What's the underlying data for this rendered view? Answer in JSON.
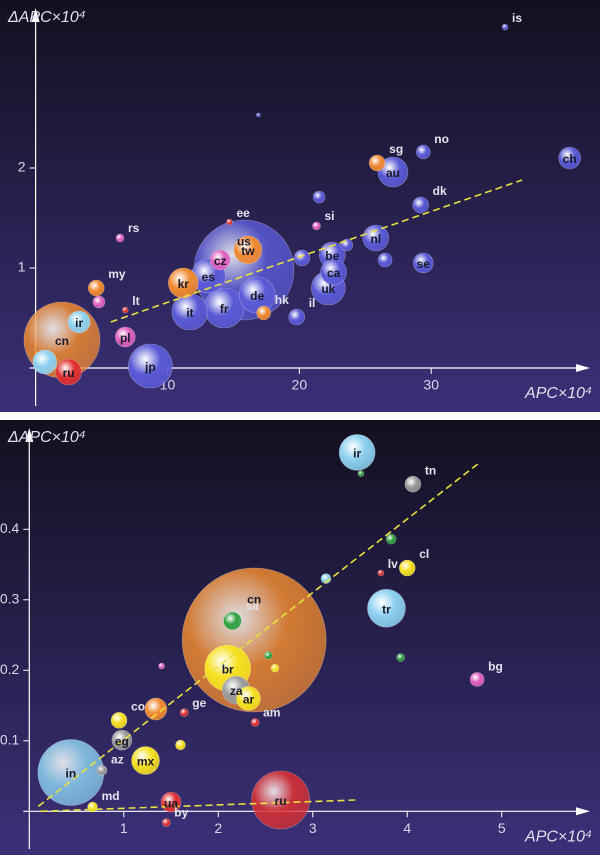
{
  "chart_data": [
    {
      "type": "bubble",
      "y_label": "ΔAPC×10⁴",
      "x_label": "APC×10⁴",
      "xlim": [
        -2.7,
        42.8
      ],
      "ylim": [
        -0.44,
        3.68
      ],
      "xticks": [
        10,
        20,
        30
      ],
      "yticks": [
        1,
        2
      ],
      "points": [
        {
          "label": "us",
          "x": 15.8,
          "y": 0.98,
          "size": 50,
          "color": "#5a5ad6"
        },
        {
          "label": "cn",
          "x": 2.0,
          "y": 0.28,
          "size": 38,
          "color": "#f08a30"
        },
        {
          "label": "jp",
          "x": 8.7,
          "y": 0.02,
          "size": 22,
          "color": "#5a5ad6"
        },
        {
          "label": "fr",
          "x": 14.3,
          "y": 0.6,
          "size": 20,
          "color": "#5a5ad6"
        },
        {
          "label": "de",
          "x": 16.8,
          "y": 0.73,
          "size": 18,
          "color": "#5a5ad6"
        },
        {
          "label": "it",
          "x": 11.7,
          "y": 0.56,
          "size": 18,
          "color": "#5a5ad6"
        },
        {
          "label": "uk",
          "x": 22.2,
          "y": 0.8,
          "size": 17,
          "color": "#5a5ad6"
        },
        {
          "label": "es",
          "x": 13.1,
          "y": 0.92,
          "size": 17,
          "color": "#5a5ad6"
        },
        {
          "label": "au",
          "x": 27.1,
          "y": 1.96,
          "size": 15,
          "color": "#5a5ad6"
        },
        {
          "label": "kr",
          "x": 11.2,
          "y": 0.85,
          "size": 15,
          "color": "#f08a30"
        },
        {
          "label": "tw",
          "x": 16.1,
          "y": 1.18,
          "size": 14,
          "color": "#f08a30"
        },
        {
          "label": "nl",
          "x": 25.8,
          "y": 1.3,
          "size": 13,
          "color": "#5a5ad6"
        },
        {
          "label": "be",
          "x": 22.5,
          "y": 1.13,
          "size": 13,
          "color": "#5a5ad6"
        },
        {
          "label": "ca",
          "x": 22.6,
          "y": 0.96,
          "size": 13,
          "color": "#5a5ad6"
        },
        {
          "label": "ru",
          "x": 2.5,
          "y": -0.04,
          "size": 13,
          "color": "#e03030"
        },
        {
          "label": null,
          "x": 0.7,
          "y": 0.06,
          "size": 12,
          "color": "#8cd0f0"
        },
        {
          "label": "ch",
          "x": 40.5,
          "y": 2.1,
          "size": 11,
          "color": "#5a5ad6"
        },
        {
          "label": "ir",
          "x": 3.3,
          "y": 0.46,
          "size": 11,
          "color": "#8cd0f0"
        },
        {
          "label": "se",
          "x": 29.4,
          "y": 1.05,
          "size": 10,
          "color": "#5a5ad6"
        },
        {
          "label": "cz",
          "x": 14.0,
          "y": 1.08,
          "size": 10,
          "color": "#e060c0"
        },
        {
          "label": "pl",
          "x": 6.8,
          "y": 0.31,
          "size": 10,
          "color": "#e060c0"
        },
        {
          "label": "sg",
          "x": 25.9,
          "y": 2.05,
          "size": 8,
          "color": "#f08a30"
        },
        {
          "label": "dk",
          "x": 29.2,
          "y": 1.63,
          "size": 8,
          "color": "#5a5ad6"
        },
        {
          "label": "il",
          "x": 19.8,
          "y": 0.51,
          "size": 8,
          "color": "#5a5ad6"
        },
        {
          "label": "my",
          "x": 4.6,
          "y": 0.8,
          "size": 8,
          "color": "#f08a30"
        },
        {
          "label": null,
          "x": 20.2,
          "y": 1.1,
          "size": 8,
          "color": "#5a5ad6"
        },
        {
          "label": "no",
          "x": 29.4,
          "y": 2.16,
          "size": 7,
          "color": "#5a5ad6"
        },
        {
          "label": "hk",
          "x": 17.3,
          "y": 0.55,
          "size": 7,
          "color": "#f08a30"
        },
        {
          "label": null,
          "x": 26.5,
          "y": 1.08,
          "size": 7,
          "color": "#5a5ad6"
        },
        {
          "label": null,
          "x": 21.5,
          "y": 1.71,
          "size": 6,
          "color": "#5a5ad6"
        },
        {
          "label": null,
          "x": 23.6,
          "y": 1.23,
          "size": 6,
          "color": "#5a5ad6"
        },
        {
          "label": null,
          "x": 4.8,
          "y": 0.66,
          "size": 6,
          "color": "#e060c0"
        },
        {
          "label": "si",
          "x": 21.3,
          "y": 1.42,
          "size": 4,
          "color": "#e060c0"
        },
        {
          "label": "rs",
          "x": 6.4,
          "y": 1.3,
          "size": 4,
          "color": "#e060c0"
        },
        {
          "label": "ee",
          "x": 14.7,
          "y": 1.46,
          "size": 3,
          "color": "#e03030"
        },
        {
          "label": "lt",
          "x": 6.8,
          "y": 0.58,
          "size": 3,
          "color": "#e03030"
        },
        {
          "label": "is",
          "x": 35.6,
          "y": 3.41,
          "size": 3,
          "color": "#5a5ad6"
        },
        {
          "label": null,
          "x": 16.9,
          "y": 2.53,
          "size": 2,
          "color": "#5a5ad6"
        }
      ],
      "trend_lines": [
        {
          "x": [
            5.7,
            36.9
          ],
          "y": [
            0.46,
            1.88
          ],
          "color": "#e8e040"
        }
      ]
    },
    {
      "type": "bubble",
      "y_label": "ΔAPC×10⁴",
      "x_label": "APC×10⁴",
      "xlim": [
        -0.31,
        6.04
      ],
      "ylim": [
        -0.062,
        0.555
      ],
      "xticks": [
        1,
        2,
        3,
        4,
        5
      ],
      "yticks": [
        0.1,
        0.2,
        0.3,
        0.4
      ],
      "points": [
        {
          "label": "cn",
          "x": 2.38,
          "y": 0.243,
          "size": 72,
          "color": "#f08a30"
        },
        {
          "label": "in",
          "x": 0.44,
          "y": 0.055,
          "size": 33,
          "color": "#8cd0f0"
        },
        {
          "label": "ru",
          "x": 2.66,
          "y": 0.016,
          "size": 29,
          "color": "#e03030"
        },
        {
          "label": "br",
          "x": 2.1,
          "y": 0.203,
          "size": 23,
          "color": "#f5e020"
        },
        {
          "label": "tr",
          "x": 3.78,
          "y": 0.288,
          "size": 19,
          "color": "#8cd0f0"
        },
        {
          "label": "ir",
          "x": 3.47,
          "y": 0.509,
          "size": 18,
          "color": "#8cd0f0"
        },
        {
          "label": "za",
          "x": 2.19,
          "y": 0.172,
          "size": 14,
          "color": "#9a9a9a"
        },
        {
          "label": "mx",
          "x": 1.23,
          "y": 0.072,
          "size": 14,
          "color": "#f5e020"
        },
        {
          "label": "ar",
          "x": 2.32,
          "y": 0.16,
          "size": 12,
          "color": "#f5e020"
        },
        {
          "label": null,
          "x": 1.34,
          "y": 0.145,
          "size": 11,
          "color": "#f08a30"
        },
        {
          "label": "eg",
          "x": 0.98,
          "y": 0.101,
          "size": 10,
          "color": "#9a9a9a"
        },
        {
          "label": "ua",
          "x": 1.5,
          "y": 0.013,
          "size": 10,
          "color": "#e03030"
        },
        {
          "label": "sa",
          "x": 2.15,
          "y": 0.27,
          "size": 9,
          "color": "#30a040"
        },
        {
          "label": "tn",
          "x": 4.06,
          "y": 0.464,
          "size": 8,
          "color": "#9a9a9a"
        },
        {
          "label": "cl",
          "x": 4.0,
          "y": 0.345,
          "size": 8,
          "color": "#f5e020"
        },
        {
          "label": "co",
          "x": 0.95,
          "y": 0.129,
          "size": 8,
          "color": "#f5e020"
        },
        {
          "label": "bg",
          "x": 4.74,
          "y": 0.187,
          "size": 7,
          "color": "#e060c0"
        },
        {
          "label": null,
          "x": 3.83,
          "y": 0.386,
          "size": 5,
          "color": "#30a040"
        },
        {
          "label": null,
          "x": 3.14,
          "y": 0.33,
          "size": 5,
          "color": "#8cd0f0"
        },
        {
          "label": null,
          "x": 1.6,
          "y": 0.094,
          "size": 5,
          "color": "#f5e020"
        },
        {
          "label": "az",
          "x": 0.77,
          "y": 0.058,
          "size": 5,
          "color": "#9a9a9a"
        },
        {
          "label": "md",
          "x": 0.67,
          "y": 0.006,
          "size": 5,
          "color": "#f5e020"
        },
        {
          "label": null,
          "x": 3.93,
          "y": 0.218,
          "size": 4,
          "color": "#30a040"
        },
        {
          "label": null,
          "x": 2.53,
          "y": 0.221,
          "size": 4,
          "color": "#30a040"
        },
        {
          "label": null,
          "x": 2.6,
          "y": 0.203,
          "size": 4,
          "color": "#f5e020"
        },
        {
          "label": "ge",
          "x": 1.64,
          "y": 0.14,
          "size": 4,
          "color": "#e03030"
        },
        {
          "label": "am",
          "x": 2.39,
          "y": 0.126,
          "size": 4,
          "color": "#e03030"
        },
        {
          "label": "by",
          "x": 1.45,
          "y": -0.016,
          "size": 4,
          "color": "#e03030"
        },
        {
          "label": "lv",
          "x": 3.72,
          "y": 0.338,
          "size": 3,
          "color": "#e03030"
        },
        {
          "label": null,
          "x": 3.51,
          "y": 0.479,
          "size": 3,
          "color": "#30a040"
        },
        {
          "label": null,
          "x": 1.4,
          "y": 0.206,
          "size": 3,
          "color": "#e060c0"
        }
      ],
      "trend_lines": [
        {
          "x": [
            0.095,
            4.77
          ],
          "y": [
            0.007,
            0.495
          ],
          "color": "#e8e040"
        },
        {
          "x": [
            0.12,
            3.45
          ],
          "y": [
            0.0,
            0.016
          ],
          "color": "#e8e040"
        }
      ]
    }
  ]
}
